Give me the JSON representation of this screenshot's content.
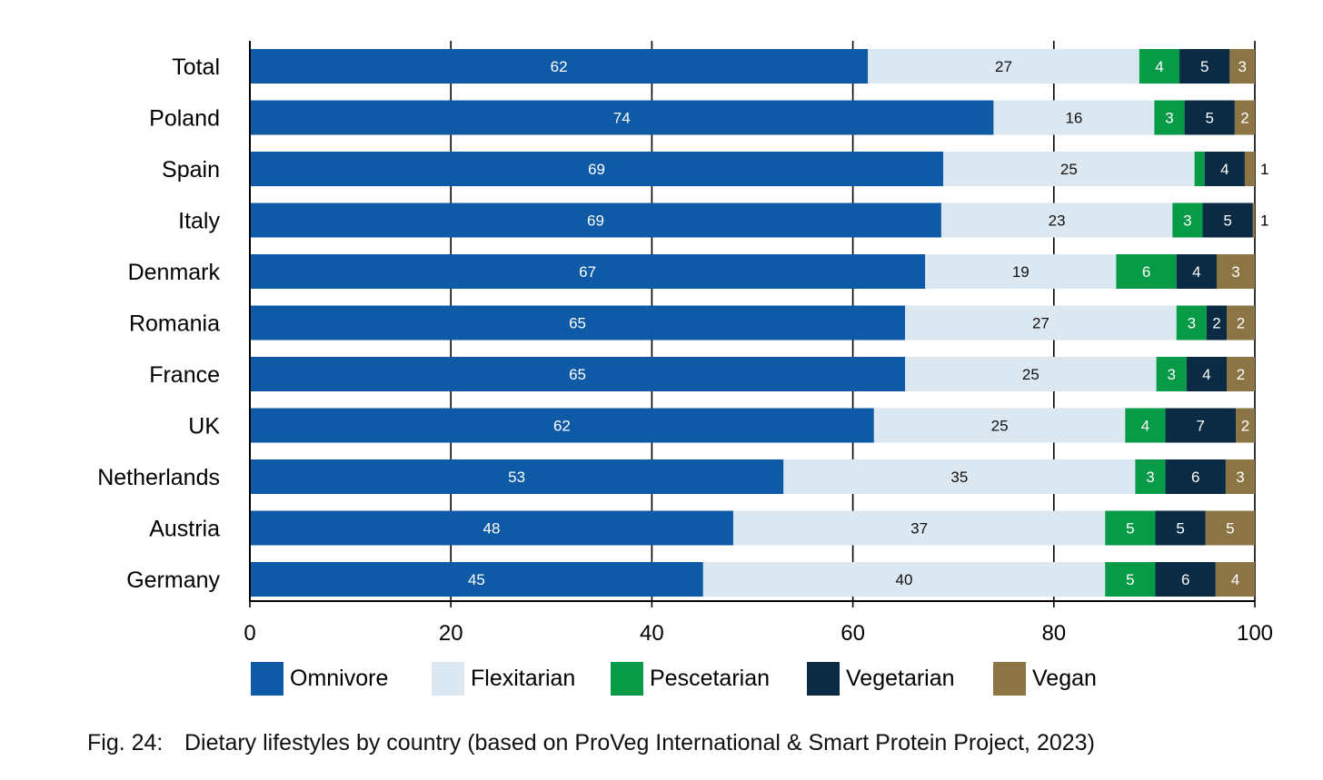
{
  "chart_data": {
    "type": "bar",
    "orientation": "horizontal",
    "stacked": true,
    "categories": [
      "Total",
      "Poland",
      "Spain",
      "Italy",
      "Denmark",
      "Romania",
      "France",
      "UK",
      "Netherlands",
      "Austria",
      "Germany"
    ],
    "series": [
      {
        "name": "Omnivore",
        "color": "#0E5AA7",
        "label_color": "#ffffff",
        "values": [
          62,
          74,
          69,
          69,
          67,
          65,
          65,
          62,
          53,
          48,
          45
        ],
        "value_positions": [
          61.5,
          74,
          69,
          68.8,
          67.2,
          65.2,
          65.2,
          62.1,
          53.1,
          48.1,
          45.1
        ]
      },
      {
        "name": "Flexitarian",
        "color": "#DBE8F1",
        "label_color": "#111111",
        "values": [
          27,
          16,
          25,
          23,
          19,
          27,
          25,
          25,
          35,
          37,
          40
        ]
      },
      {
        "name": "Pescetarian",
        "color": "#079A47",
        "label_color": "#ffffff",
        "values": [
          4,
          3,
          1,
          3,
          6,
          3,
          3,
          4,
          3,
          5,
          5
        ]
      },
      {
        "name": "Vegetarian",
        "color": "#0B2A43",
        "label_color": "#ffffff",
        "values": [
          5,
          5,
          4,
          5,
          4,
          2,
          4,
          7,
          6,
          5,
          6
        ]
      },
      {
        "name": "Vegan",
        "color": "#8C7545",
        "label_color": "#ffffff",
        "values": [
          3,
          2,
          1,
          1,
          3,
          2,
          2,
          2,
          3,
          5,
          4
        ]
      }
    ],
    "xlim": [
      0,
      100
    ],
    "xticks": [
      0,
      20,
      40,
      60,
      80,
      100
    ],
    "xtick_labels": [
      "0",
      "20",
      "40",
      "60",
      "80",
      "100"
    ],
    "grid": "vertical",
    "legend": "bottom",
    "xlabel": "",
    "ylabel": ""
  },
  "caption": {
    "label": "Fig. 24:",
    "text": "Dietary lifestyles by country (based on ProVeg International & Smart Protein Project, 2023)"
  }
}
